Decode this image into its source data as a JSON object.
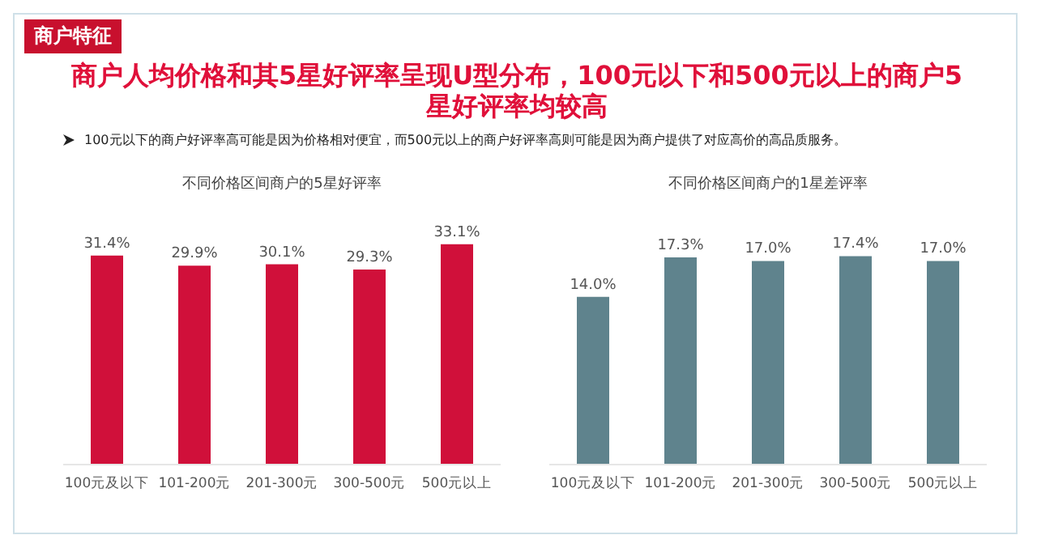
{
  "chart_data": [
    {
      "type": "bar",
      "title": "不同价格区间商户的5星好评率",
      "annotations": [
        "商户特征",
        "商户人均价格和其5星好评率呈现U型分布，100元以下和500元以上的商户5星好评率均较高",
        "100元以下的商户好评率高可能是因为价格相对便宜，而500元以上的商户好评率高则可能是因为商户提供了对应高价的高品质服务。"
      ],
      "categories": [
        "100元及以下",
        "101-200元",
        "201-300元",
        "300-500元",
        "500元以上"
      ],
      "values": [
        31.4,
        29.9,
        30.1,
        29.3,
        33.1
      ],
      "value_labels": [
        "31.4%",
        "29.9%",
        "30.1%",
        "29.3%",
        "33.1%"
      ],
      "color": "#d0103a",
      "tick_labels": "x"
    },
    {
      "type": "bar",
      "title": "不同价格区间商户的1星差评率",
      "categories": [
        "100元及以下",
        "101-200元",
        "201-300元",
        "300-500元",
        "500元以上"
      ],
      "values": [
        14.0,
        17.3,
        17.0,
        17.4,
        17.0
      ],
      "value_labels": [
        "14.0%",
        "17.3%",
        "17.0%",
        "17.4%",
        "17.0%"
      ],
      "color": "#5f838d",
      "tick_labels": "x"
    }
  ]
}
